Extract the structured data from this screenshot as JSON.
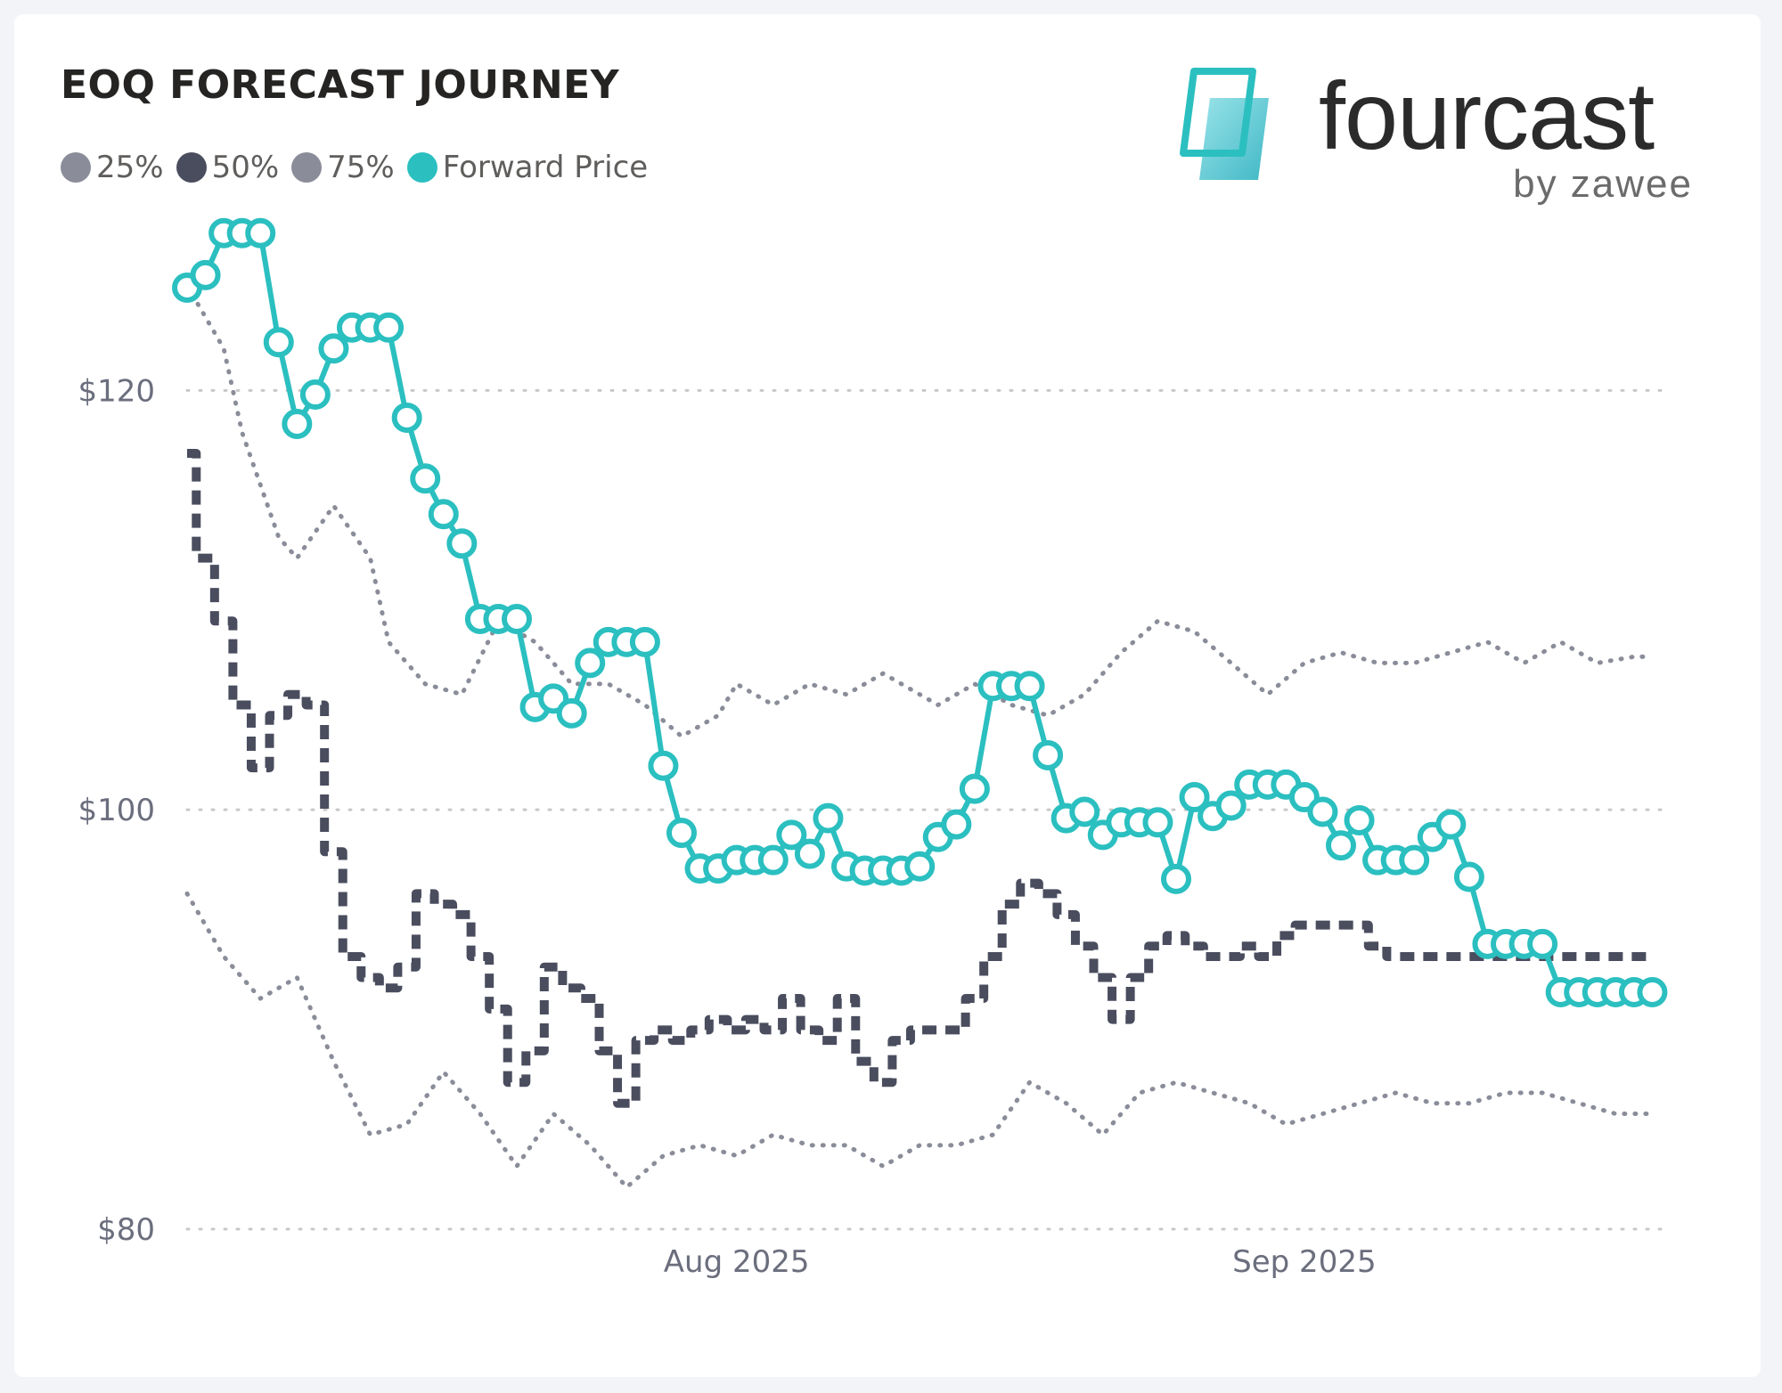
{
  "title": "EOQ FORECAST JOURNEY",
  "legend": [
    {
      "label": "25%",
      "color": "#8a8d99"
    },
    {
      "label": "50%",
      "color": "#4a4d5e"
    },
    {
      "label": "75%",
      "color": "#8a8d99"
    },
    {
      "label": "Forward Price",
      "color": "#2bbfc0"
    }
  ],
  "logo": {
    "word": "fourcast",
    "sub": "by zawee"
  },
  "chart_data": {
    "type": "line",
    "ylim": [
      80,
      128
    ],
    "xlim": [
      "2025-07-02",
      "2025-09-21"
    ],
    "y_ticks": [
      {
        "value": 120,
        "label": "$120"
      },
      {
        "value": 100,
        "label": "$100"
      },
      {
        "value": 80,
        "label": "$80"
      }
    ],
    "x_ticks": [
      {
        "value": "2025-08-01",
        "label": "Aug 2025"
      },
      {
        "value": "2025-09-01",
        "label": "Sep 2025"
      }
    ],
    "grid": true,
    "legend_position": "top-left",
    "series": [
      {
        "name": "Forward Price",
        "color": "#2bbfc0",
        "style": "line-markers",
        "x": [
          "2025-07-02",
          "2025-07-03",
          "2025-07-04",
          "2025-07-05",
          "2025-07-06",
          "2025-07-07",
          "2025-07-08",
          "2025-07-09",
          "2025-07-10",
          "2025-07-11",
          "2025-07-12",
          "2025-07-13",
          "2025-07-14",
          "2025-07-15",
          "2025-07-16",
          "2025-07-17",
          "2025-07-18",
          "2025-07-19",
          "2025-07-20",
          "2025-07-21",
          "2025-07-22",
          "2025-07-23",
          "2025-07-24",
          "2025-07-25",
          "2025-07-26",
          "2025-07-27",
          "2025-07-28",
          "2025-07-29",
          "2025-07-30",
          "2025-07-31",
          "2025-08-01",
          "2025-08-02",
          "2025-08-03",
          "2025-08-04",
          "2025-08-05",
          "2025-08-06",
          "2025-08-07",
          "2025-08-08",
          "2025-08-09",
          "2025-08-10",
          "2025-08-11",
          "2025-08-12",
          "2025-08-13",
          "2025-08-14",
          "2025-08-15",
          "2025-08-16",
          "2025-08-17",
          "2025-08-18",
          "2025-08-19",
          "2025-08-20",
          "2025-08-21",
          "2025-08-22",
          "2025-08-23",
          "2025-08-24",
          "2025-08-25",
          "2025-08-26",
          "2025-08-27",
          "2025-08-28",
          "2025-08-29",
          "2025-08-30",
          "2025-08-31",
          "2025-09-01",
          "2025-09-02",
          "2025-09-03",
          "2025-09-04",
          "2025-09-05",
          "2025-09-06",
          "2025-09-07",
          "2025-09-08",
          "2025-09-09",
          "2025-09-10",
          "2025-09-11",
          "2025-09-12",
          "2025-09-13",
          "2025-09-14",
          "2025-09-15",
          "2025-09-16",
          "2025-09-17",
          "2025-09-18",
          "2025-09-19",
          "2025-09-20"
        ],
        "values": [
          124.9,
          125.5,
          127.5,
          127.5,
          127.5,
          122.3,
          118.4,
          119.8,
          122.0,
          123.0,
          123.0,
          123.0,
          118.7,
          115.8,
          114.1,
          112.7,
          109.1,
          109.1,
          109.1,
          104.9,
          105.3,
          104.6,
          107.0,
          108.0,
          108.0,
          108.0,
          102.1,
          98.9,
          97.2,
          97.2,
          97.6,
          97.6,
          97.6,
          98.8,
          97.9,
          99.6,
          97.3,
          97.1,
          97.1,
          97.1,
          97.3,
          98.7,
          99.3,
          101.0,
          105.9,
          105.9,
          105.9,
          102.6,
          99.6,
          99.9,
          98.8,
          99.4,
          99.4,
          99.4,
          96.7,
          100.6,
          99.7,
          100.2,
          101.2,
          101.2,
          101.2,
          100.6,
          99.9,
          98.3,
          99.5,
          97.6,
          97.6,
          97.6,
          98.7,
          99.3,
          96.8,
          93.6,
          93.6,
          93.6,
          93.6,
          91.3,
          91.3,
          91.3,
          91.3,
          91.3,
          91.3
        ]
      },
      {
        "name": "75%",
        "color": "#8a8d99",
        "style": "dotted",
        "x": [
          "2025-07-02",
          "2025-07-04",
          "2025-07-05",
          "2025-07-07",
          "2025-07-08",
          "2025-07-10",
          "2025-07-12",
          "2025-07-13",
          "2025-07-15",
          "2025-07-17",
          "2025-07-19",
          "2025-07-21",
          "2025-07-23",
          "2025-07-25",
          "2025-07-27",
          "2025-07-29",
          "2025-07-31",
          "2025-08-01",
          "2025-08-03",
          "2025-08-05",
          "2025-08-07",
          "2025-08-09",
          "2025-08-10",
          "2025-08-12",
          "2025-08-14",
          "2025-08-16",
          "2025-08-18",
          "2025-08-20",
          "2025-08-22",
          "2025-08-24",
          "2025-08-26",
          "2025-08-28",
          "2025-08-30",
          "2025-09-01",
          "2025-09-03",
          "2025-09-05",
          "2025-09-07",
          "2025-09-09",
          "2025-09-11",
          "2025-09-13",
          "2025-09-15",
          "2025-09-17",
          "2025-09-19",
          "2025-09-20"
        ],
        "values": [
          125.0,
          122.0,
          118.0,
          113.0,
          112.0,
          114.5,
          112.0,
          108.0,
          106.0,
          105.5,
          109.0,
          108.0,
          106.0,
          106.0,
          105.0,
          103.5,
          104.5,
          106.0,
          105.0,
          106.0,
          105.5,
          106.5,
          106.0,
          105.0,
          106.0,
          105.0,
          104.5,
          105.5,
          107.5,
          109.0,
          108.5,
          107.0,
          105.5,
          107.0,
          107.5,
          107.0,
          107.0,
          107.5,
          108.0,
          107.0,
          108.0,
          107.0,
          107.3,
          107.3
        ]
      },
      {
        "name": "50%",
        "color": "#4a4d5e",
        "style": "dashed",
        "x": [
          "2025-07-02",
          "2025-07-03",
          "2025-07-04",
          "2025-07-05",
          "2025-07-06",
          "2025-07-07",
          "2025-07-08",
          "2025-07-09",
          "2025-07-10",
          "2025-07-11",
          "2025-07-12",
          "2025-07-13",
          "2025-07-14",
          "2025-07-15",
          "2025-07-16",
          "2025-07-17",
          "2025-07-18",
          "2025-07-19",
          "2025-07-20",
          "2025-07-21",
          "2025-07-22",
          "2025-07-23",
          "2025-07-24",
          "2025-07-25",
          "2025-07-26",
          "2025-07-27",
          "2025-07-28",
          "2025-07-29",
          "2025-07-30",
          "2025-07-31",
          "2025-08-01",
          "2025-08-02",
          "2025-08-03",
          "2025-08-04",
          "2025-08-05",
          "2025-08-06",
          "2025-08-07",
          "2025-08-08",
          "2025-08-09",
          "2025-08-10",
          "2025-08-11",
          "2025-08-12",
          "2025-08-13",
          "2025-08-14",
          "2025-08-15",
          "2025-08-16",
          "2025-08-17",
          "2025-08-18",
          "2025-08-19",
          "2025-08-20",
          "2025-08-21",
          "2025-08-22",
          "2025-08-23",
          "2025-08-24",
          "2025-08-25",
          "2025-08-26",
          "2025-08-27",
          "2025-08-28",
          "2025-08-29",
          "2025-08-30",
          "2025-08-31",
          "2025-09-01",
          "2025-09-02",
          "2025-09-03",
          "2025-09-04",
          "2025-09-05",
          "2025-09-06",
          "2025-09-07",
          "2025-09-08",
          "2025-09-09",
          "2025-09-10",
          "2025-09-11",
          "2025-09-12",
          "2025-09-13",
          "2025-09-14",
          "2025-09-15",
          "2025-09-16",
          "2025-09-17",
          "2025-09-18",
          "2025-09-19",
          "2025-09-20"
        ],
        "values": [
          117.0,
          112.0,
          109.0,
          105.0,
          102.0,
          104.5,
          105.5,
          105.0,
          98.0,
          93.0,
          92.0,
          91.5,
          92.5,
          96.0,
          95.5,
          95.0,
          93.0,
          90.5,
          87.0,
          88.5,
          92.5,
          91.5,
          91.0,
          88.5,
          86.0,
          89.0,
          89.5,
          89.0,
          89.5,
          90.0,
          89.5,
          90.0,
          89.5,
          91.0,
          89.5,
          89.0,
          91.0,
          88.0,
          87.0,
          89.0,
          89.5,
          89.5,
          89.5,
          91.0,
          93.0,
          95.5,
          96.5,
          96.0,
          95.0,
          93.5,
          92.0,
          90.0,
          92.0,
          93.5,
          94.0,
          93.5,
          93.0,
          93.0,
          93.5,
          93.0,
          94.0,
          94.5,
          94.5,
          94.5,
          94.5,
          93.5,
          93.0,
          93.0,
          93.0,
          93.0,
          93.0,
          93.0,
          93.0,
          93.0,
          93.0,
          93.0,
          93.0,
          93.0,
          93.0,
          93.0,
          93.0
        ]
      },
      {
        "name": "25%",
        "color": "#8a8d99",
        "style": "dotted",
        "x": [
          "2025-07-02",
          "2025-07-04",
          "2025-07-06",
          "2025-07-08",
          "2025-07-10",
          "2025-07-12",
          "2025-07-14",
          "2025-07-16",
          "2025-07-18",
          "2025-07-20",
          "2025-07-22",
          "2025-07-24",
          "2025-07-26",
          "2025-07-28",
          "2025-07-30",
          "2025-08-01",
          "2025-08-03",
          "2025-08-05",
          "2025-08-07",
          "2025-08-09",
          "2025-08-11",
          "2025-08-13",
          "2025-08-15",
          "2025-08-17",
          "2025-08-19",
          "2025-08-21",
          "2025-08-23",
          "2025-08-25",
          "2025-08-27",
          "2025-08-29",
          "2025-08-31",
          "2025-09-02",
          "2025-09-04",
          "2025-09-06",
          "2025-09-08",
          "2025-09-10",
          "2025-09-12",
          "2025-09-14",
          "2025-09-16",
          "2025-09-18",
          "2025-09-20"
        ],
        "values": [
          96.0,
          93.0,
          91.0,
          92.0,
          88.0,
          84.5,
          85.0,
          87.5,
          85.5,
          83.0,
          85.5,
          84.0,
          82.0,
          83.5,
          84.0,
          83.5,
          84.5,
          84.0,
          84.0,
          83.0,
          84.0,
          84.0,
          84.5,
          87.0,
          86.0,
          84.5,
          86.5,
          87.0,
          86.5,
          86.0,
          85.0,
          85.5,
          86.0,
          86.5,
          86.0,
          86.0,
          86.5,
          86.5,
          86.0,
          85.5,
          85.5
        ]
      }
    ]
  }
}
